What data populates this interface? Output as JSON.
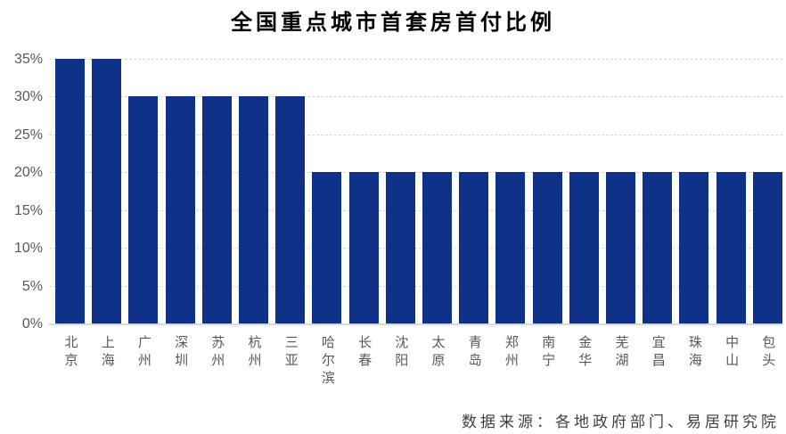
{
  "title": "全国重点城市首套房首付比例",
  "source": "数据来源：各地政府部门、易居研究院",
  "chart_data": {
    "type": "bar",
    "title": "全国重点城市首套房首付比例",
    "categories": [
      "北京",
      "上海",
      "广州",
      "深圳",
      "苏州",
      "杭州",
      "三亚",
      "哈尔滨",
      "长春",
      "沈阳",
      "太原",
      "青岛",
      "郑州",
      "南宁",
      "金华",
      "芜湖",
      "宜昌",
      "珠海",
      "中山",
      "包头"
    ],
    "values": [
      35,
      35,
      30,
      30,
      30,
      30,
      30,
      20,
      20,
      20,
      20,
      20,
      20,
      20,
      20,
      20,
      20,
      20,
      20,
      20
    ],
    "unit": "%",
    "xlabel": "",
    "ylabel": "",
    "ylim": [
      0,
      35
    ],
    "ytick_step": 5,
    "ytick_labels": [
      "0%",
      "5%",
      "10%",
      "15%",
      "20%",
      "25%",
      "30%",
      "35%"
    ],
    "grid": "horizontal-dashed",
    "legend": "none",
    "source_note": "数据来源：各地政府部门、易居研究院",
    "colors": {
      "bar": "#0f3288",
      "axis_label": "#595959",
      "gridline": "#d9d9d9",
      "title": "#000000",
      "source": "#404040",
      "background": "#ffffff"
    }
  }
}
